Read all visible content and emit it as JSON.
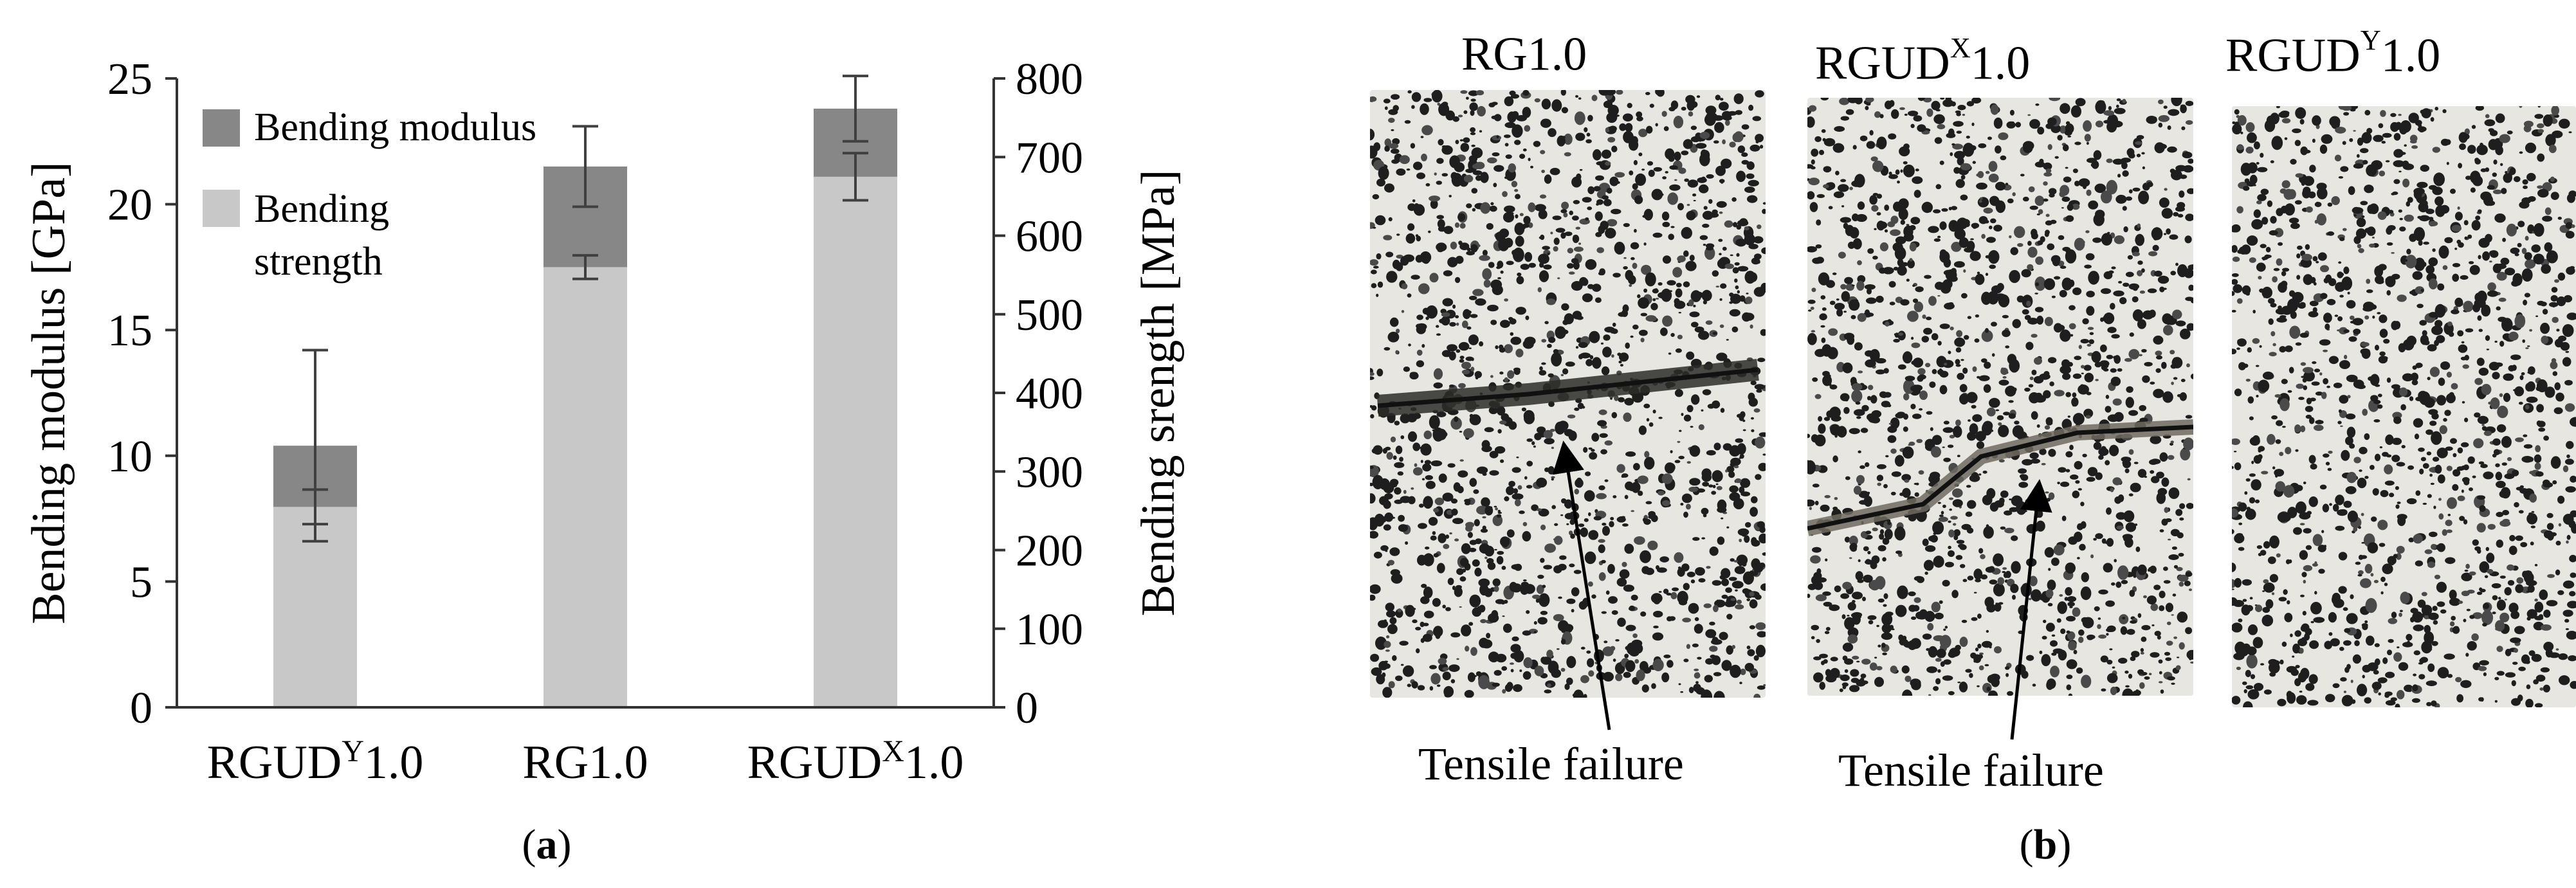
{
  "chart_data": {
    "type": "bar",
    "categories": [
      "RGUD^Y1.0",
      "RG1.0",
      "RGUD^X1.0"
    ],
    "category_labels": [
      {
        "base": "RGUD",
        "sup": "Y",
        "tail": "1.0"
      },
      {
        "base": "RG1.0",
        "sup": "",
        "tail": ""
      },
      {
        "base": "RGUD",
        "sup": "X",
        "tail": "1.0"
      }
    ],
    "series": [
      {
        "name": "Bending modulus",
        "axis": "left",
        "unit": "GPa",
        "values": [
          10.4,
          21.5,
          23.8
        ],
        "errors": [
          3.8,
          1.6,
          1.3
        ]
      },
      {
        "name": "Bending strength",
        "axis": "right",
        "unit": "MPa",
        "values": [
          255,
          560,
          675
        ],
        "errors": [
          22,
          15,
          30
        ]
      }
    ],
    "ylabel": "Bending modulus [GPa]",
    "ylim": [
      0,
      25
    ],
    "yticks": [
      0,
      5,
      10,
      15,
      20,
      25
    ],
    "y2label": "Bending srength [MPa]",
    "y2lim": [
      0,
      800
    ],
    "y2ticks": [
      0,
      100,
      200,
      300,
      400,
      500,
      600,
      700,
      800
    ],
    "legend_position": "top-left",
    "grid": false,
    "colors": {
      "modulus": "#878787",
      "strength": "#c8c8c8",
      "error": "#404040"
    }
  },
  "panel_a_label": {
    "open": "(",
    "letter": "a",
    "close": ")"
  },
  "panel_b_label": {
    "open": "(",
    "letter": "b",
    "close": ")"
  },
  "specimens": [
    {
      "base": "RG1.0",
      "sup": "",
      "tail": ""
    },
    {
      "base": "RGUD",
      "sup": "X",
      "tail": "1.0"
    },
    {
      "base": "RGUD",
      "sup": "Y",
      "tail": "1.0"
    }
  ],
  "annotations": [
    "Tensile failure",
    "Tensile failure"
  ]
}
